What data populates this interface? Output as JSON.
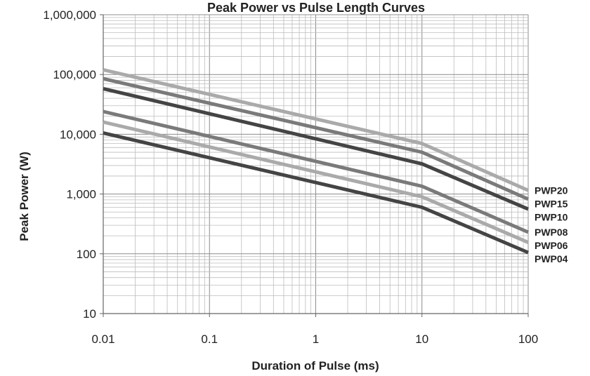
{
  "chart_data": {
    "type": "line",
    "title": "Peak Power vs Pulse Length Curves",
    "xlabel": "Duration of Pulse (ms)",
    "ylabel": "Peak Power (W)",
    "x_scale": "log",
    "y_scale": "log",
    "xlim": [
      0.01,
      100
    ],
    "ylim": [
      10,
      1000000
    ],
    "x_ticks": [
      "0.01",
      "0.1",
      "1",
      "10",
      "100"
    ],
    "y_ticks": [
      "10",
      "100",
      "1,000",
      "10,000",
      "100,000",
      "1,000,000"
    ],
    "grid": true,
    "legend": "inline labels at right end of lines",
    "series": [
      {
        "name": "PWP20",
        "color": "#aaaaaa",
        "points": [
          [
            0.01,
            120000
          ],
          [
            10,
            7000
          ],
          [
            100,
            1150
          ]
        ]
      },
      {
        "name": "PWP15",
        "color": "#7a7a7a",
        "points": [
          [
            0.01,
            85000
          ],
          [
            10,
            5000
          ],
          [
            100,
            820
          ]
        ]
      },
      {
        "name": "PWP10",
        "color": "#444444",
        "points": [
          [
            0.01,
            58000
          ],
          [
            10,
            3200
          ],
          [
            100,
            560
          ]
        ]
      },
      {
        "name": "PWP08",
        "color": "#7a7a7a",
        "points": [
          [
            0.01,
            24000
          ],
          [
            10,
            1350
          ],
          [
            100,
            230
          ]
        ]
      },
      {
        "name": "PWP06",
        "color": "#aaaaaa",
        "points": [
          [
            0.01,
            16000
          ],
          [
            10,
            900
          ],
          [
            100,
            155
          ]
        ]
      },
      {
        "name": "PWP04",
        "color": "#444444",
        "points": [
          [
            0.01,
            10500
          ],
          [
            10,
            600
          ],
          [
            100,
            105
          ]
        ]
      }
    ]
  }
}
